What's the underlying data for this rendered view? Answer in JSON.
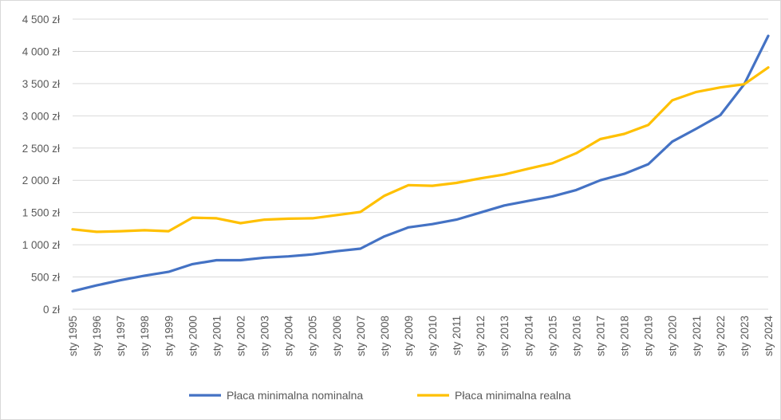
{
  "chart_data": {
    "type": "line",
    "title": "",
    "xlabel": "",
    "ylabel": "",
    "ylim": [
      0,
      4500
    ],
    "y_ticks": [
      0,
      500,
      1000,
      1500,
      2000,
      2500,
      3000,
      3500,
      4000,
      4500
    ],
    "y_tick_labels": [
      "0 zł",
      "500 zł",
      "1 000 zł",
      "1 500 zł",
      "2 000 zł",
      "2 500 zł",
      "3 000 zł",
      "3 500 zł",
      "4 000 zł",
      "4 500 zł"
    ],
    "categories": [
      "sty 1995",
      "sty 1996",
      "sty 1997",
      "sty 1998",
      "sty 1999",
      "sty 2000",
      "sty 2001",
      "sty 2002",
      "sty 2003",
      "sty 2004",
      "sty 2005",
      "sty 2006",
      "sty 2007",
      "sty 2008",
      "sty 2009",
      "sty 2010",
      "sty 2011",
      "sty 2012",
      "sty 2013",
      "sty 2014",
      "sty 2015",
      "sty 2016",
      "sty 2017",
      "sty 2018",
      "sty 2019",
      "sty 2020",
      "sty 2021",
      "sty 2022",
      "sty 2023",
      "sty 2024"
    ],
    "grid": true,
    "legend_position": "bottom",
    "series": [
      {
        "name": "Płaca minimalna nominalna",
        "color": "#4472c4",
        "values": [
          280,
          370,
          450,
          520,
          580,
          700,
          760,
          760,
          800,
          820,
          850,
          900,
          940,
          1130,
          1270,
          1320,
          1390,
          1500,
          1610,
          1680,
          1750,
          1850,
          2000,
          2100,
          2250,
          2600,
          2800,
          3010,
          3490,
          4240
        ]
      },
      {
        "name": "Płaca minimalna realna",
        "color": "#ffc000",
        "values": [
          1240,
          1200,
          1210,
          1225,
          1210,
          1420,
          1410,
          1335,
          1390,
          1405,
          1410,
          1460,
          1510,
          1760,
          1925,
          1915,
          1960,
          2030,
          2090,
          2180,
          2265,
          2420,
          2640,
          2720,
          2860,
          3240,
          3370,
          3440,
          3490,
          3750
        ]
      }
    ]
  }
}
